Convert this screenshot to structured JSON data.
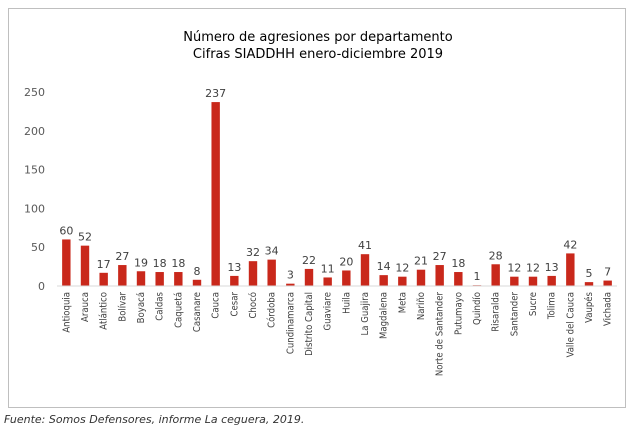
{
  "chart_data": {
    "type": "bar",
    "title": "Número de agresiones por departamento",
    "subtitle": "Cifras SIADDHH enero-diciembre 2019",
    "xlabel": "",
    "ylabel": "",
    "ylim": [
      0,
      250
    ],
    "yticks": [
      0,
      50,
      100,
      150,
      200,
      250
    ],
    "grid": false,
    "legend": "none",
    "bar_color": "#c9281b",
    "categories": [
      "Antioquia",
      "Arauca",
      "Atlántico",
      "Bolívar",
      "Boyacá",
      "Caldas",
      "Caquetá",
      "Casanare",
      "Cauca",
      "Cesar",
      "Chocó",
      "Córdoba",
      "Cundinamarca",
      "Distrito Capital",
      "Guaviare",
      "Huila",
      "La Guajira",
      "Magdalena",
      "Meta",
      "Nariño",
      "Norte de Santander",
      "Putumayo",
      "Quindío",
      "Risaralda",
      "Santander",
      "Sucre",
      "Tolima",
      "Valle del Cauca",
      "Vaupés",
      "Vichada"
    ],
    "values": [
      60,
      52,
      17,
      27,
      19,
      18,
      18,
      8,
      237,
      13,
      32,
      34,
      3,
      22,
      11,
      20,
      41,
      14,
      12,
      21,
      27,
      18,
      1,
      28,
      12,
      12,
      13,
      42,
      5,
      7
    ]
  },
  "source_note": "Fuente: Somos Defensores, informe La ceguera, 2019."
}
